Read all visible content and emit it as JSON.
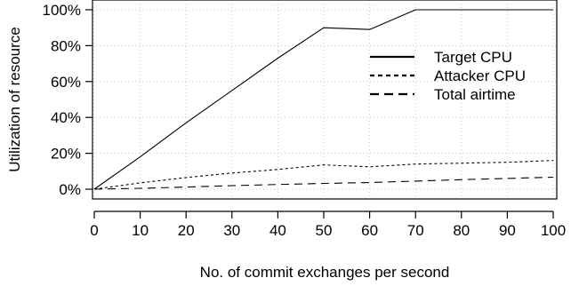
{
  "chart_data": {
    "type": "line",
    "title": "",
    "xlabel": "No. of commit exchanges per second",
    "ylabel": "Utilization of resource",
    "x": [
      0,
      10,
      20,
      30,
      40,
      50,
      60,
      70,
      80,
      90,
      100
    ],
    "xlim": [
      0,
      100
    ],
    "ylim": [
      0,
      100
    ],
    "x_ticks": [
      "0",
      "10",
      "20",
      "30",
      "40",
      "50",
      "60",
      "70",
      "80",
      "90",
      "100"
    ],
    "y_ticks": [
      {
        "value": 0,
        "label": "0%"
      },
      {
        "value": 20,
        "label": "20%"
      },
      {
        "value": 40,
        "label": "40%"
      },
      {
        "value": 60,
        "label": "60%"
      },
      {
        "value": 80,
        "label": "80%"
      },
      {
        "value": 100,
        "label": "100%"
      }
    ],
    "grid": true,
    "legend_position": "right",
    "series": [
      {
        "name": "Target CPU",
        "style": "solid",
        "values": [
          0,
          18,
          37,
          55,
          73,
          90,
          89,
          100,
          100,
          100,
          100
        ]
      },
      {
        "name": "Attacker CPU",
        "style": "dotted",
        "values": [
          0,
          3.5,
          6.5,
          9,
          11,
          13.5,
          12.5,
          14,
          14.5,
          15,
          16
        ]
      },
      {
        "name": "Total airtime",
        "style": "dashed",
        "values": [
          0,
          0.5,
          1.2,
          2,
          2.6,
          3.2,
          3.7,
          4.5,
          5.3,
          6,
          6.7
        ]
      }
    ]
  }
}
